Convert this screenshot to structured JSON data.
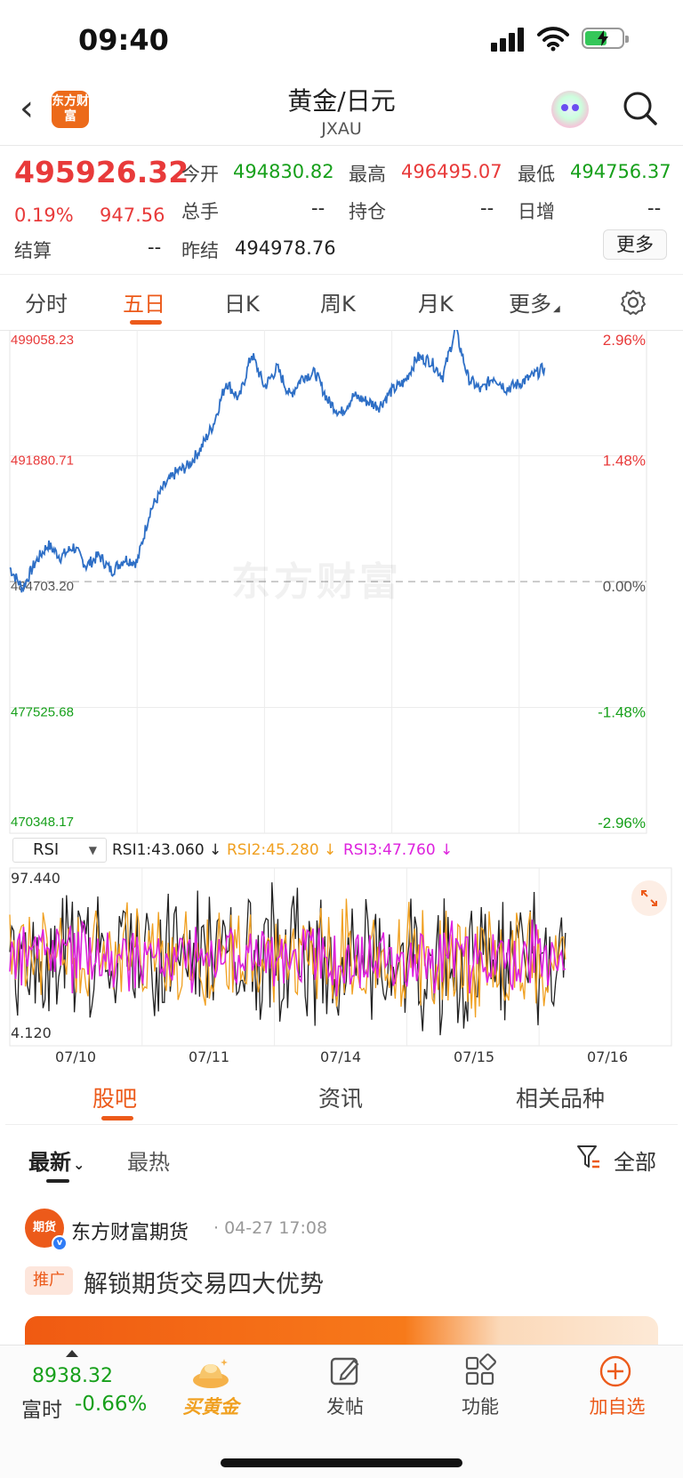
{
  "status_bar": {
    "time": "09:40"
  },
  "header": {
    "logo_text": "东方财富",
    "title": "黄金/日元",
    "subtitle": "JXAU"
  },
  "quote": {
    "price": "495926.32",
    "change_pct": "0.19%",
    "change": "947.56",
    "fields": [
      {
        "label": "今开",
        "value": "494830.82"
      },
      {
        "label": "最高",
        "value": "496495.07"
      },
      {
        "label": "最低",
        "value": "494756.37"
      },
      {
        "label": "总手",
        "value": "--"
      },
      {
        "label": "持仓",
        "value": "--"
      },
      {
        "label": "日增",
        "value": "--"
      },
      {
        "label": "结算",
        "value": "--"
      },
      {
        "label": "昨结",
        "value": "494978.76"
      }
    ],
    "more_label": "更多"
  },
  "chart_tabs": [
    "分时",
    "五日",
    "日K",
    "周K",
    "月K",
    "更多"
  ],
  "active_chart_tab": "五日",
  "watermark": "东方财富",
  "rsi": {
    "selector_label": "RSI",
    "rsi1": "RSI1:43.060 ↓",
    "rsi2": "RSI2:45.280 ↓",
    "rsi3": "RSI3:47.760 ↓",
    "y_max": "97.440",
    "y_min": "4.120",
    "x_labels": [
      "07/10",
      "07/11",
      "07/14",
      "07/15",
      "07/16"
    ]
  },
  "chart_data": {
    "type": "line",
    "x": [
      "07/10",
      "07/11",
      "07/14",
      "07/15",
      "07/16"
    ],
    "y_ticks_left": [
      "499058.23",
      "491880.71",
      "484703.20",
      "477525.68",
      "470348.17"
    ],
    "y_ticks_right": [
      "2.96%",
      "1.48%",
      "0.00%",
      "-1.48%",
      "-2.96%"
    ],
    "ylim": [
      470348.17,
      499058.23
    ],
    "reference_line": 484703.2,
    "series": [
      {
        "color": "#2e6fc6",
        "x": [
          0,
          0.1,
          0.2,
          0.3,
          0.4,
          0.5,
          0.6,
          0.7,
          0.8,
          0.9,
          1.0,
          1.1,
          1.2,
          1.3,
          1.4,
          1.5,
          1.6,
          1.7,
          1.8,
          1.9,
          2.0,
          2.1,
          2.2,
          2.3,
          2.4,
          2.5,
          2.6,
          2.7,
          2.8,
          2.9,
          3.0,
          3.1,
          3.2,
          3.3,
          3.4,
          3.5,
          3.6,
          3.7,
          3.8,
          3.9,
          4.0,
          4.1,
          4.2
        ],
        "values": [
          485500,
          484300,
          485800,
          486800,
          486100,
          486700,
          485600,
          486200,
          485300,
          486000,
          485800,
          488700,
          490000,
          490900,
          491300,
          492300,
          493700,
          496100,
          495100,
          497700,
          495800,
          496900,
          495300,
          496400,
          496600,
          495000,
          494300,
          495300,
          495000,
          494700,
          495600,
          496100,
          497500,
          497300,
          496400,
          499100,
          496300,
          495600,
          496400,
          495700,
          496000,
          496400,
          496900
        ]
      }
    ]
  },
  "community": {
    "tabs": [
      "股吧",
      "资讯",
      "相关品种"
    ],
    "sort_latest": "最新",
    "sort_hot": "最热",
    "filter_all": "全部",
    "post": {
      "avatar_text": "期货",
      "author": "东方财富期货",
      "time": "· 04-27 17:08",
      "tag": "推广",
      "title": "解锁期货交易四大优势"
    }
  },
  "bottom_bar": {
    "index_value": "8938.32",
    "index_name": "富时",
    "index_pct": "-0.66%",
    "buy_gold": "买黄金",
    "post": "发帖",
    "features": "功能",
    "add_watch": "加自选"
  },
  "colors": {
    "up": "#e83a3a",
    "down": "#17a01b",
    "accent": "#ec5a1a",
    "line": "#2e6fc6",
    "rsi1": "#222222",
    "rsi2": "#f0a020",
    "rsi3": "#dd22dd"
  }
}
